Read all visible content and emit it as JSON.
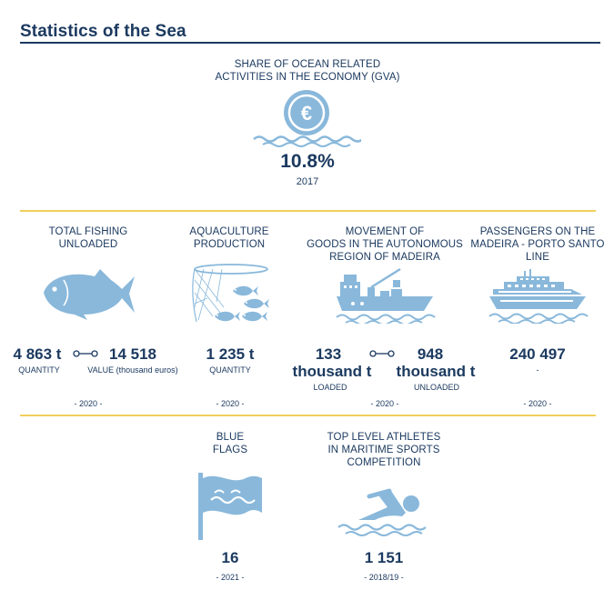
{
  "header": {
    "title": "Statistics of the Sea"
  },
  "gva": {
    "label_line1": "SHARE OF OCEAN RELATED",
    "label_line2": "ACTIVITIES IN THE ECONOMY (GVA)",
    "value": "10.8%",
    "year": "2017"
  },
  "fishing": {
    "label_line1": "TOTAL FISHING",
    "label_line2": "UNLOADED",
    "quantity_value": "4 863 t",
    "quantity_label": "QUANTITY",
    "value_value": "14 518",
    "value_label": "VALUE (thousand euros)",
    "year": "- 2020 -"
  },
  "aquaculture": {
    "label_line1": "AQUACULTURE",
    "label_line2": "PRODUCTION",
    "value": "1 235 t",
    "sublabel": "QUANTITY",
    "year": "- 2020 -"
  },
  "goods": {
    "label_line1": "MOVEMENT OF",
    "label_line2": "GOODS IN THE AUTONOMOUS",
    "label_line3": "REGION OF MADEIRA",
    "loaded_num": "133",
    "loaded_unit": "thousand t",
    "loaded_label": "LOADED",
    "unloaded_num": "948",
    "unloaded_unit": "thousand t",
    "unloaded_label": "UNLOADED",
    "year": "- 2020 -"
  },
  "passengers": {
    "label_line1": "PASSENGERS ON THE",
    "label_line2": "MADEIRA - PORTO SANTO",
    "label_line3": "LINE",
    "value": "240 497",
    "sublabel": "-",
    "year": "- 2020 -"
  },
  "blue_flags": {
    "label_line1": "BLUE",
    "label_line2": "FLAGS",
    "value": "16",
    "year": "- 2021 -"
  },
  "athletes": {
    "label_line1": "TOP LEVEL ATHLETES",
    "label_line2": "IN MARITIME SPORTS",
    "label_line3": "COMPETITION",
    "value": "1 151",
    "year": "- 2018/19 -"
  },
  "colors": {
    "navy": "#1c3a60",
    "icon_blue": "#89b8db",
    "gold": "#f1cf5c"
  },
  "icons": [
    "euro-coin-icon",
    "fish-icon",
    "fish-net-icon",
    "cargo-ship-icon",
    "ferry-icon",
    "blue-flag-icon",
    "swimmer-icon"
  ]
}
